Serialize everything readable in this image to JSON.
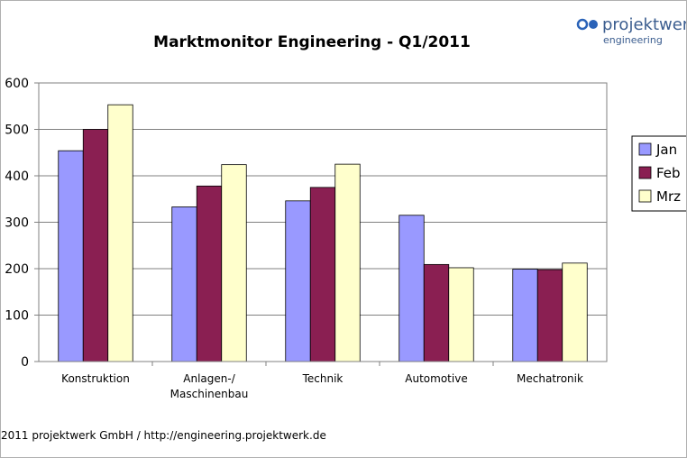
{
  "logo": {
    "main": "projektwerk",
    "sub": "engineering"
  },
  "footer": "2011 projektwerk GmbH / http://engineering.projektwerk.de",
  "colors": {
    "jan": "#9999ff",
    "feb": "#8a1f52",
    "mrz": "#ffffcc",
    "logo": "#3b5d8f",
    "logo_dot": "#2b63b8"
  },
  "chart_data": {
    "type": "bar",
    "title": "Marktmonitor Engineering - Q1/2011",
    "xlabel": "",
    "ylabel": "",
    "categories": [
      [
        "Konstruktion"
      ],
      [
        "Anlagen-/",
        "Maschinenbau"
      ],
      [
        "Technik"
      ],
      [
        "Automotive"
      ],
      [
        "Mechatronik"
      ]
    ],
    "series": [
      {
        "name": "Jan",
        "values": [
          454,
          333,
          346,
          315,
          199
        ]
      },
      {
        "name": "Feb",
        "values": [
          500,
          378,
          375,
          209,
          198
        ]
      },
      {
        "name": "Mrz",
        "values": [
          553,
          424,
          425,
          202,
          212
        ]
      }
    ],
    "ylim": [
      0,
      600
    ],
    "yticks": [
      "0",
      "100",
      "200",
      "300",
      "400",
      "500",
      "600"
    ],
    "grid": true,
    "legend_position": "right"
  }
}
